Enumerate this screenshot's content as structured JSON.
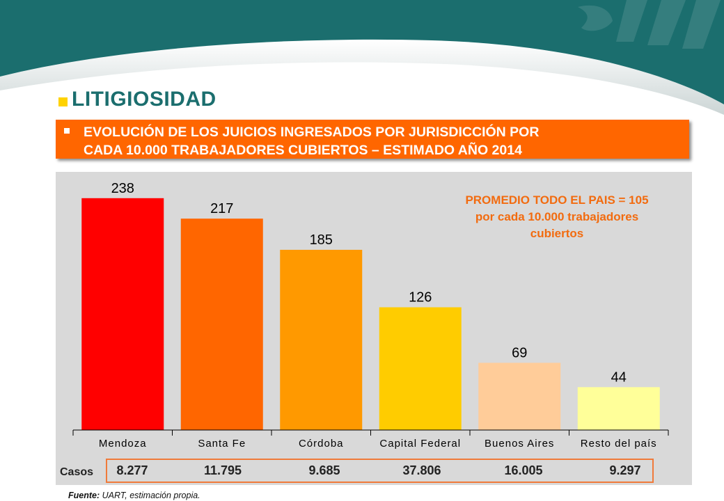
{
  "header": {
    "title": "LITIGIOSIDAD",
    "subtitle": "EVOLUCIÓN DE LOS JUICIOS INGRESADOS POR JURISDICCIÓN POR\nCADA 10.000 TRABAJADORES CUBIERTOS – ESTIMADO AÑO 2014"
  },
  "colors": {
    "banner": "#1b6e6e",
    "accent_orange": "#ff6600",
    "title_square": "#ffd200",
    "panel_bg": "#d9d9d9"
  },
  "chart_data": {
    "type": "bar",
    "title": "",
    "xlabel": "",
    "ylabel": "",
    "categories": [
      "Mendoza",
      "Santa Fe",
      "Córdoba",
      "Capital Federal",
      "Buenos Aires",
      "Resto del país"
    ],
    "values": [
      238,
      217,
      185,
      126,
      69,
      44
    ],
    "bar_colors": [
      "#ff0000",
      "#ff6600",
      "#ff9900",
      "#ffcc00",
      "#ffcc99",
      "#ffff99"
    ],
    "data_labels": [
      "238",
      "217",
      "185",
      "126",
      "69",
      "44"
    ],
    "ylim": [
      0,
      250
    ],
    "grid": false,
    "legend": "none",
    "annotation": {
      "line1": "PROMEDIO TODO EL PAIS = 105",
      "line2": "por cada 10.000 trabajadores",
      "line3": "cubiertos"
    }
  },
  "casos": {
    "label": "Casos",
    "values": [
      "8.277",
      "11.795",
      "9.685",
      "37.806",
      "16.005",
      "9.297"
    ]
  },
  "footer": {
    "source_label": "Fuente:",
    "source_text": " UART, estimación propia."
  }
}
